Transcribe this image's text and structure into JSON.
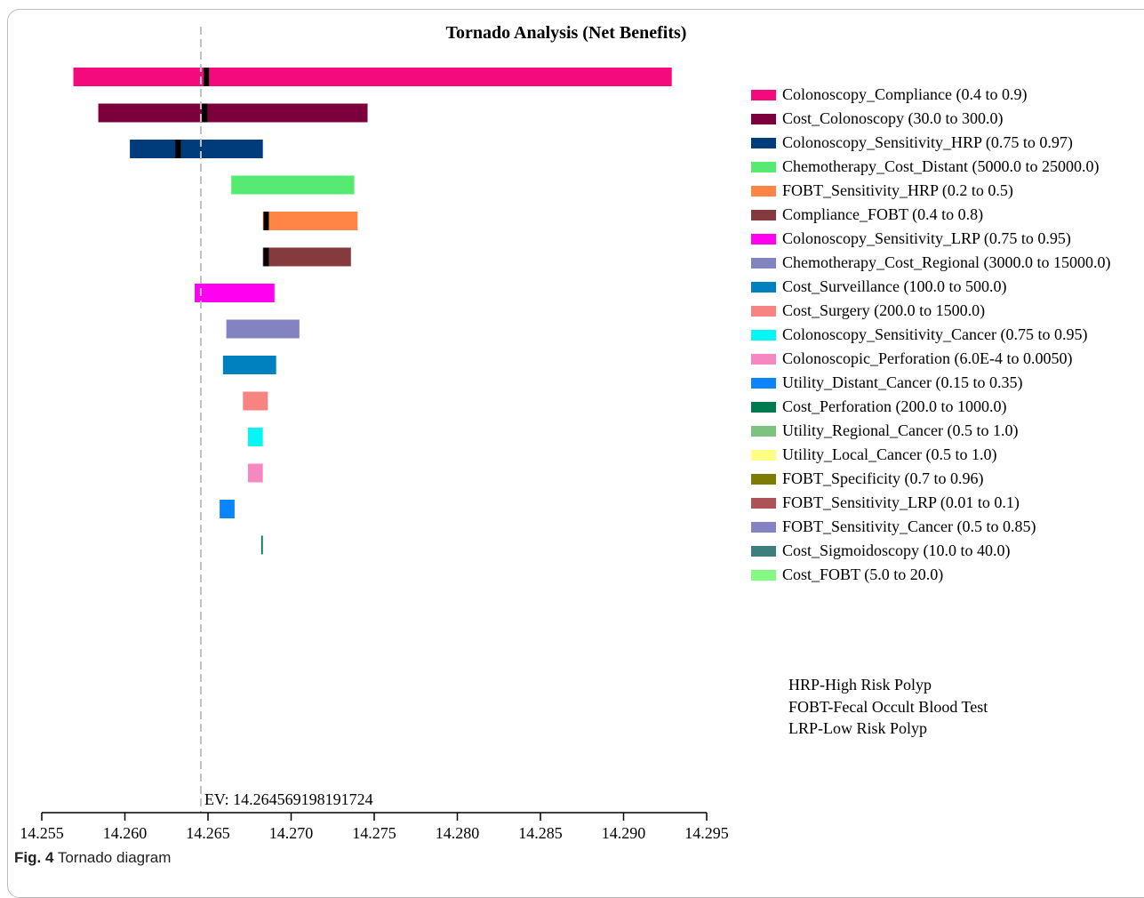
{
  "chart_data": {
    "type": "bar",
    "orientation": "horizontal-tornado",
    "title": "Tornado Analysis (Net Benefits)",
    "xlim": [
      14.255,
      14.295
    ],
    "x_ticks": [
      "14.255",
      "14.260",
      "14.265",
      "14.270",
      "14.275",
      "14.280",
      "14.285",
      "14.290",
      "14.295"
    ],
    "expected_value": 14.264569198191724,
    "ev_label": "EV: 14.264569198191724",
    "bars": [
      {
        "name": "Colonoscopy_Compliance (0.4 to 0.9)",
        "color": "#F50A7D",
        "low": 14.2569,
        "high": 14.2929,
        "marker": 14.2649
      },
      {
        "name": "Cost_Colonoscopy (30.0 to 300.0)",
        "color": "#7B003B",
        "low": 14.2584,
        "high": 14.2746,
        "marker": 14.2648
      },
      {
        "name": "Colonoscopy_Sensitivity_HRP (0.75 to 0.97)",
        "color": "#003B7C",
        "low": 14.2603,
        "high": 14.2683,
        "marker": 14.2632
      },
      {
        "name": "Chemotherapy_Cost_Distant (5000.0 to 25000.0)",
        "color": "#56EA72",
        "low": 14.2664,
        "high": 14.2738,
        "marker": null
      },
      {
        "name": "FOBT_Sensitivity_HRP (0.2 to 0.5)",
        "color": "#FF8546",
        "low": 14.2683,
        "high": 14.274,
        "marker": 14.2685
      },
      {
        "name": "Compliance_FOBT (0.4 to 0.8)",
        "color": "#853B3E",
        "low": 14.2683,
        "high": 14.2736,
        "marker": 14.2685
      },
      {
        "name": "Colonoscopy_Sensitivity_LRP (0.75 to 0.95)",
        "color": "#FF00F0",
        "low": 14.2642,
        "high": 14.269,
        "marker": null
      },
      {
        "name": "Chemotherapy_Cost_Regional (3000.0 to 15000.0)",
        "color": "#8483C2",
        "low": 14.2661,
        "high": 14.2705,
        "marker": null
      },
      {
        "name": "Cost_Surveillance (100.0 to 500.0)",
        "color": "#0081BF",
        "low": 14.2659,
        "high": 14.2691,
        "marker": null
      },
      {
        "name": "Cost_Surgery (200.0 to 1500.0)",
        "color": "#F88482",
        "low": 14.2671,
        "high": 14.2686,
        "marker": null
      },
      {
        "name": "Colonoscopy_Sensitivity_Cancer (0.75 to 0.95)",
        "color": "#06F5F5",
        "low": 14.2674,
        "high": 14.2683,
        "marker": null
      },
      {
        "name": "Colonoscopic_Perforation (6.0E-4 to 0.0050)",
        "color": "#F587C1",
        "low": 14.2674,
        "high": 14.2683,
        "marker": null
      },
      {
        "name": "Utility_Distant_Cancer (0.15 to 0.35)",
        "color": "#0A84FF",
        "low": 14.2657,
        "high": 14.2666,
        "marker": null
      },
      {
        "name": "Cost_Perforation (200.0 to 1000.0)",
        "color": "#007A4F",
        "low": 14.2682,
        "high": 14.2683,
        "marker": null
      },
      {
        "name": "Utility_Regional_Cancer (0.5 to 1.0)",
        "color": "#7EC282",
        "low": null,
        "high": null,
        "marker": null
      },
      {
        "name": "Utility_Local_Cancer (0.5 to 1.0)",
        "color": "#FFFF84",
        "low": null,
        "high": null,
        "marker": null
      },
      {
        "name": "FOBT_Specificity (0.7 to 0.96)",
        "color": "#7D7C00",
        "low": null,
        "high": null,
        "marker": null
      },
      {
        "name": "FOBT_Sensitivity_LRP (0.01 to 0.1)",
        "color": "#AD5257",
        "low": null,
        "high": null,
        "marker": null
      },
      {
        "name": "FOBT_Sensitivity_Cancer (0.5 to 0.85)",
        "color": "#8484C4",
        "low": null,
        "high": null,
        "marker": null
      },
      {
        "name": "Cost_Sigmoidoscopy (10.0 to 40.0)",
        "color": "#3D7E7E",
        "low": null,
        "high": null,
        "marker": null
      },
      {
        "name": "Cost_FOBT (5.0 to 20.0)",
        "color": "#84FA83",
        "low": null,
        "high": null,
        "marker": null
      }
    ],
    "legend_position": "right",
    "grid": false
  },
  "abbreviations": [
    "HRP-High Risk Polyp",
    "FOBT-Fecal Occult Blood Test",
    "LRP-Low Risk Polyp"
  ],
  "caption": {
    "label": "Fig. 4",
    "text": "Tornado diagram"
  }
}
